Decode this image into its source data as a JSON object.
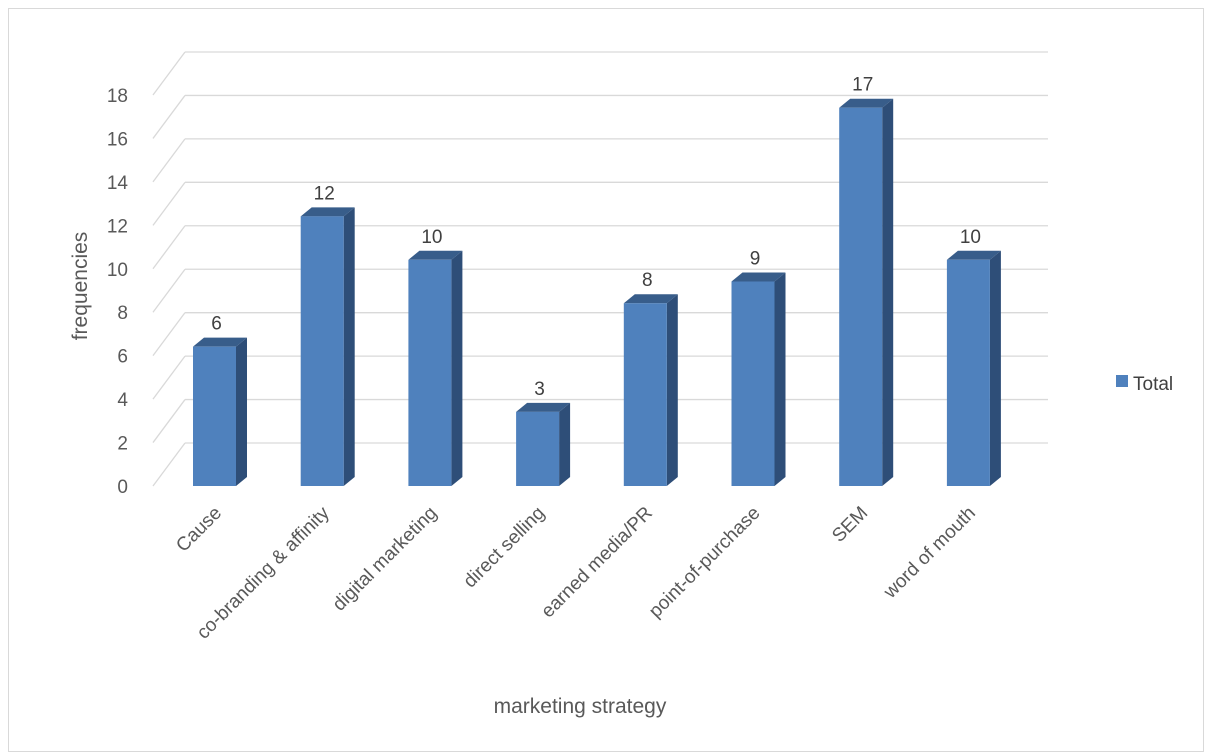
{
  "chart_data": {
    "type": "bar",
    "style": "3d-column",
    "categories": [
      "Cause",
      "co-branding & affinity",
      "digital marketing",
      "direct selling",
      "earned media/PR",
      "point-of-purchase",
      "SEM",
      "word of mouth"
    ],
    "series": [
      {
        "name": "Total",
        "values": [
          6,
          12,
          10,
          3,
          8,
          9,
          17,
          10
        ]
      }
    ],
    "title": "",
    "xlabel": "marketing strategy",
    "ylabel": "frequencies",
    "ylim": [
      0,
      18
    ],
    "yticks": [
      "0",
      "2",
      "4",
      "6",
      "8",
      "10",
      "12",
      "14",
      "16",
      "18"
    ],
    "grid": true,
    "legend": "right",
    "data_labels": true,
    "colors": {
      "bar_front": "#4f81bd",
      "bar_side": "#2e4e78",
      "bar_top": "#385d8a",
      "grid": "#d9d9d9"
    }
  }
}
